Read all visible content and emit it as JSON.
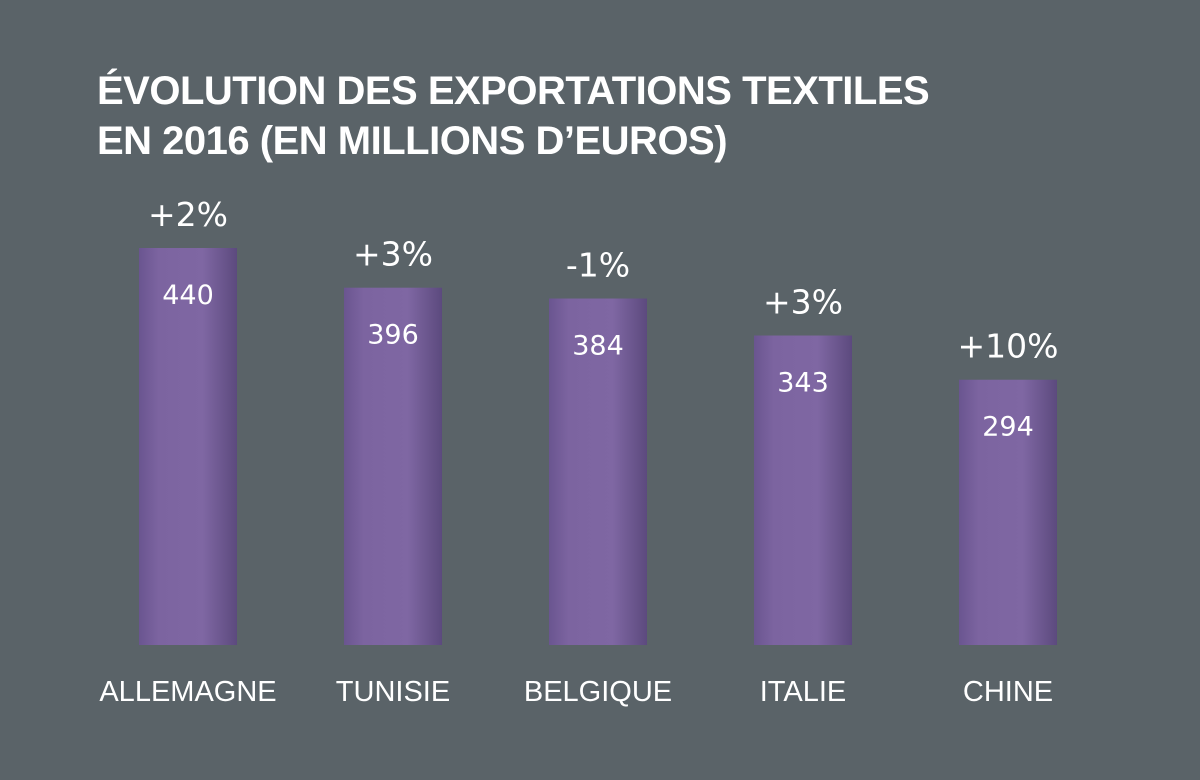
{
  "chart_data": {
    "type": "bar",
    "title": "ÉVOLUTION DES EXPORTATIONS TEXTILES EN 2016 (EN MILLIONS D’EUROS)",
    "title_lines": [
      "ÉVOLUTION DES EXPORTATIONS TEXTILES",
      "EN 2016 (EN MILLIONS D’EUROS)"
    ],
    "categories": [
      "ALLEMAGNE",
      "TUNISIE",
      "BELGIQUE",
      "ITALIE",
      "CHINE"
    ],
    "values": [
      440,
      396,
      384,
      343,
      294
    ],
    "changes": [
      "+2%",
      "+3%",
      "-1%",
      "+3%",
      "+10%"
    ],
    "xlabel": "",
    "ylabel": "",
    "ylim": [
      0,
      440
    ],
    "grid": false,
    "legend": "none",
    "colors": {
      "background": "#5a6368",
      "bar": "#7d65a0",
      "bar_dark": "#5e4a80",
      "text": "#ffffff"
    }
  }
}
